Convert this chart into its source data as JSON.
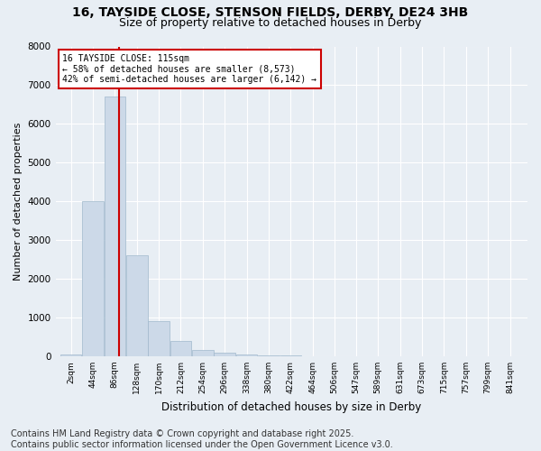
{
  "title_line1": "16, TAYSIDE CLOSE, STENSON FIELDS, DERBY, DE24 3HB",
  "title_line2": "Size of property relative to detached houses in Derby",
  "xlabel": "Distribution of detached houses by size in Derby",
  "ylabel": "Number of detached properties",
  "bin_labels": [
    "2sqm",
    "44sqm",
    "86sqm",
    "128sqm",
    "170sqm",
    "212sqm",
    "254sqm",
    "296sqm",
    "338sqm",
    "380sqm",
    "422sqm",
    "464sqm",
    "506sqm",
    "547sqm",
    "589sqm",
    "631sqm",
    "673sqm",
    "715sqm",
    "757sqm",
    "799sqm",
    "841sqm"
  ],
  "bin_edges": [
    2,
    44,
    86,
    128,
    170,
    212,
    254,
    296,
    338,
    380,
    422,
    464,
    506,
    547,
    589,
    631,
    673,
    715,
    757,
    799,
    841
  ],
  "bar_heights": [
    50,
    4000,
    6700,
    2600,
    900,
    400,
    150,
    100,
    50,
    30,
    20,
    10,
    5,
    3,
    2,
    2,
    1,
    1,
    1,
    1
  ],
  "bar_color": "#ccd9e8",
  "bar_edgecolor": "#a0b8cc",
  "ylim": [
    0,
    8000
  ],
  "yticks": [
    0,
    1000,
    2000,
    3000,
    4000,
    5000,
    6000,
    7000,
    8000
  ],
  "property_size": 115,
  "vline_color": "#cc0000",
  "annotation_title": "16 TAYSIDE CLOSE: 115sqm",
  "annotation_line2": "← 58% of detached houses are smaller (8,573)",
  "annotation_line3": "42% of semi-detached houses are larger (6,142) →",
  "annotation_box_facecolor": "#ffffff",
  "annotation_box_edgecolor": "#cc0000",
  "footer_line1": "Contains HM Land Registry data © Crown copyright and database right 2025.",
  "footer_line2": "Contains public sector information licensed under the Open Government Licence v3.0.",
  "background_color": "#e8eef4",
  "plot_background": "#e8eef4",
  "grid_color": "#ffffff",
  "title_fontsize": 10,
  "subtitle_fontsize": 9,
  "footer_fontsize": 7
}
